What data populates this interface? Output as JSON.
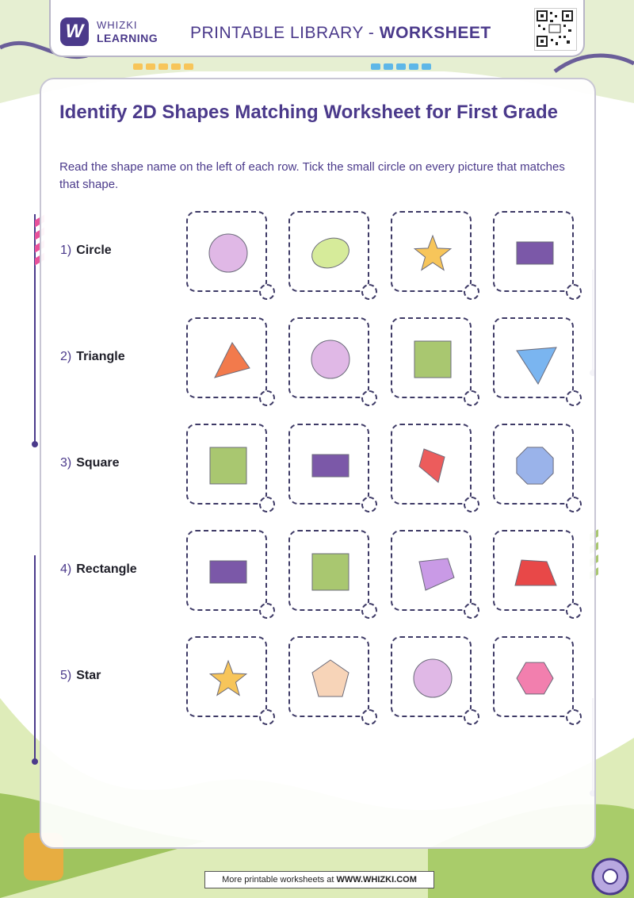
{
  "header": {
    "brand_line1": "WHIZKI",
    "brand_line2": "LEARNING",
    "logo_letter": "W",
    "title_prefix": "PRINTABLE LIBRARY - ",
    "title_emphasis": "WORKSHEET"
  },
  "worksheet": {
    "title": "Identify 2D Shapes Matching Worksheet for First Grade",
    "instructions": "Read the shape name on the left of each row. Tick the small circle on every picture that matches that shape."
  },
  "rows": [
    {
      "number": "1)",
      "name": "Circle",
      "options": [
        {
          "shape": "circle",
          "color": "#e0b8e6"
        },
        {
          "shape": "oval",
          "color": "#d6eb9a"
        },
        {
          "shape": "star",
          "color": "#f7c55a"
        },
        {
          "shape": "rectangle",
          "color": "#7b58a8"
        }
      ]
    },
    {
      "number": "2)",
      "name": "Triangle",
      "options": [
        {
          "shape": "triangle",
          "color": "#f27a4c"
        },
        {
          "shape": "circle",
          "color": "#e0b8e6"
        },
        {
          "shape": "square",
          "color": "#a9c770"
        },
        {
          "shape": "triangle-down",
          "color": "#7ab5f0"
        }
      ]
    },
    {
      "number": "3)",
      "name": "Square",
      "options": [
        {
          "shape": "square",
          "color": "#a9c770"
        },
        {
          "shape": "rectangle",
          "color": "#7b58a8"
        },
        {
          "shape": "kite",
          "color": "#ec5c5c"
        },
        {
          "shape": "octagon",
          "color": "#9ab3ea"
        }
      ]
    },
    {
      "number": "4)",
      "name": "Rectangle",
      "options": [
        {
          "shape": "rectangle",
          "color": "#7b58a8"
        },
        {
          "shape": "square",
          "color": "#a9c770"
        },
        {
          "shape": "quad",
          "color": "#c99ae6"
        },
        {
          "shape": "trapezoid",
          "color": "#e84848"
        }
      ]
    },
    {
      "number": "5)",
      "name": "Star",
      "options": [
        {
          "shape": "star",
          "color": "#f7c55a"
        },
        {
          "shape": "pentagon",
          "color": "#f7d4b8"
        },
        {
          "shape": "circle",
          "color": "#e0b8e6"
        },
        {
          "shape": "hexagon",
          "color": "#f27fae"
        }
      ]
    }
  ],
  "footer": {
    "prefix": "More printable worksheets at ",
    "site": "WWW.WHIZKI.COM"
  }
}
